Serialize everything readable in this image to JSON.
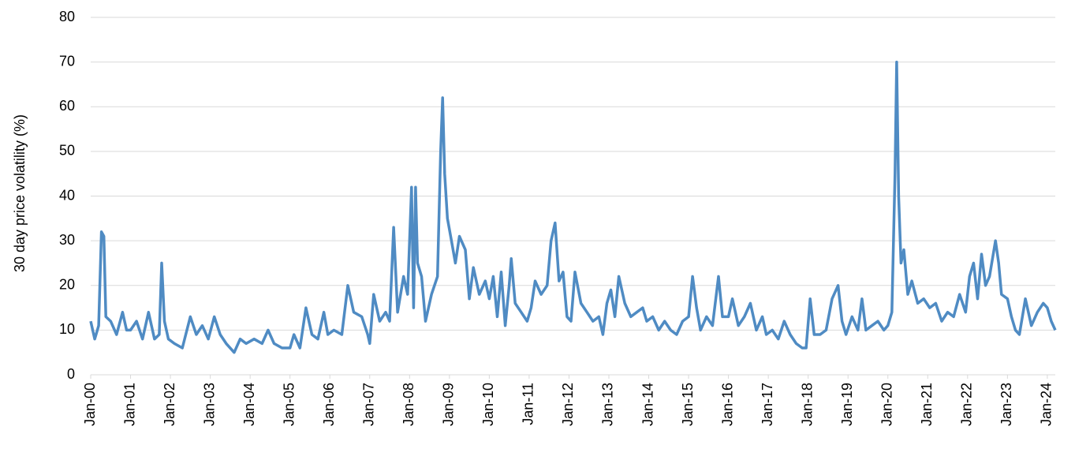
{
  "chart_data": {
    "type": "line",
    "ylabel": "30 day price volatility (%)",
    "xlim": [
      2000,
      2024.2
    ],
    "xticks": [
      {
        "value": 2000,
        "label": "Jan-00"
      },
      {
        "value": 2001,
        "label": "Jan-01"
      },
      {
        "value": 2002,
        "label": "Jan-02"
      },
      {
        "value": 2003,
        "label": "Jan-03"
      },
      {
        "value": 2004,
        "label": "Jan-04"
      },
      {
        "value": 2005,
        "label": "Jan-05"
      },
      {
        "value": 2006,
        "label": "Jan-06"
      },
      {
        "value": 2007,
        "label": "Jan-07"
      },
      {
        "value": 2008,
        "label": "Jan-08"
      },
      {
        "value": 2009,
        "label": "Jan-09"
      },
      {
        "value": 2010,
        "label": "Jan-10"
      },
      {
        "value": 2011,
        "label": "Jan-11"
      },
      {
        "value": 2012,
        "label": "Jan-12"
      },
      {
        "value": 2013,
        "label": "Jan-13"
      },
      {
        "value": 2014,
        "label": "Jan-14"
      },
      {
        "value": 2015,
        "label": "Jan-15"
      },
      {
        "value": 2016,
        "label": "Jan-16"
      },
      {
        "value": 2017,
        "label": "Jan-17"
      },
      {
        "value": 2018,
        "label": "Jan-18"
      },
      {
        "value": 2019,
        "label": "Jan-19"
      },
      {
        "value": 2020,
        "label": "Jan-20"
      },
      {
        "value": 2021,
        "label": "Jan-21"
      },
      {
        "value": 2022,
        "label": "Jan-22"
      },
      {
        "value": 2023,
        "label": "Jan-23"
      },
      {
        "value": 2024,
        "label": "Jan-24"
      }
    ],
    "ylim": [
      0,
      80
    ],
    "yticks": [
      0,
      10,
      20,
      30,
      40,
      50,
      60,
      70,
      80
    ],
    "grid": true,
    "series": [
      {
        "color": "#4f8bc3",
        "x": [
          2000.0,
          2000.1,
          2000.2,
          2000.27,
          2000.33,
          2000.38,
          2000.5,
          2000.65,
          2000.8,
          2000.9,
          2001.0,
          2001.15,
          2001.3,
          2001.45,
          2001.6,
          2001.72,
          2001.78,
          2001.85,
          2001.95,
          2002.1,
          2002.3,
          2002.5,
          2002.65,
          2002.8,
          2002.95,
          2003.1,
          2003.25,
          2003.4,
          2003.6,
          2003.75,
          2003.9,
          2004.1,
          2004.3,
          2004.45,
          2004.6,
          2004.8,
          2005.0,
          2005.1,
          2005.25,
          2005.4,
          2005.55,
          2005.7,
          2005.85,
          2005.95,
          2006.1,
          2006.3,
          2006.45,
          2006.6,
          2006.8,
          2006.95,
          2007.0,
          2007.1,
          2007.25,
          2007.4,
          2007.5,
          2007.6,
          2007.7,
          2007.85,
          2007.95,
          2008.05,
          2008.1,
          2008.15,
          2008.2,
          2008.3,
          2008.4,
          2008.55,
          2008.7,
          2008.78,
          2008.83,
          2008.88,
          2008.95,
          2009.05,
          2009.15,
          2009.25,
          2009.4,
          2009.5,
          2009.6,
          2009.75,
          2009.9,
          2010.0,
          2010.1,
          2010.2,
          2010.3,
          2010.4,
          2010.5,
          2010.55,
          2010.65,
          2010.8,
          2010.95,
          2011.05,
          2011.15,
          2011.3,
          2011.45,
          2011.55,
          2011.65,
          2011.75,
          2011.85,
          2011.95,
          2012.05,
          2012.15,
          2012.3,
          2012.45,
          2012.6,
          2012.75,
          2012.85,
          2012.95,
          2013.05,
          2013.15,
          2013.25,
          2013.4,
          2013.55,
          2013.7,
          2013.85,
          2013.95,
          2014.1,
          2014.25,
          2014.4,
          2014.55,
          2014.7,
          2014.85,
          2015.0,
          2015.1,
          2015.2,
          2015.3,
          2015.45,
          2015.6,
          2015.75,
          2015.85,
          2016.0,
          2016.1,
          2016.25,
          2016.4,
          2016.55,
          2016.7,
          2016.85,
          2016.95,
          2017.1,
          2017.25,
          2017.4,
          2017.55,
          2017.7,
          2017.85,
          2017.95,
          2018.05,
          2018.15,
          2018.3,
          2018.45,
          2018.6,
          2018.75,
          2018.85,
          2018.95,
          2019.1,
          2019.25,
          2019.35,
          2019.45,
          2019.6,
          2019.75,
          2019.9,
          2020.0,
          2020.1,
          2020.18,
          2020.22,
          2020.27,
          2020.33,
          2020.4,
          2020.5,
          2020.6,
          2020.75,
          2020.9,
          2021.05,
          2021.2,
          2021.35,
          2021.5,
          2021.65,
          2021.8,
          2021.95,
          2022.05,
          2022.15,
          2022.25,
          2022.35,
          2022.45,
          2022.55,
          2022.7,
          2022.78,
          2022.85,
          2023.0,
          2023.1,
          2023.2,
          2023.3,
          2023.45,
          2023.6,
          2023.75,
          2023.9,
          2024.0,
          2024.1,
          2024.2
        ],
        "values": [
          12,
          8,
          11,
          32,
          31,
          13,
          12,
          9,
          14,
          10,
          10,
          12,
          8,
          14,
          8,
          9,
          25,
          12,
          8,
          7,
          6,
          13,
          9,
          11,
          8,
          13,
          9,
          7,
          5,
          8,
          7,
          8,
          7,
          10,
          7,
          6,
          6,
          9,
          6,
          15,
          9,
          8,
          14,
          9,
          10,
          9,
          20,
          14,
          13,
          9,
          7,
          18,
          12,
          14,
          12,
          33,
          14,
          22,
          18,
          42,
          15,
          42,
          25,
          22,
          12,
          18,
          22,
          50,
          62,
          45,
          35,
          30,
          25,
          31,
          28,
          17,
          24,
          18,
          21,
          17,
          22,
          13,
          23,
          11,
          20,
          26,
          16,
          14,
          12,
          15,
          21,
          18,
          20,
          30,
          34,
          21,
          23,
          13,
          12,
          23,
          16,
          14,
          12,
          13,
          9,
          16,
          19,
          13,
          22,
          16,
          13,
          14,
          15,
          12,
          13,
          10,
          12,
          10,
          9,
          12,
          13,
          22,
          15,
          10,
          13,
          11,
          22,
          13,
          13,
          17,
          11,
          13,
          16,
          10,
          13,
          9,
          10,
          8,
          12,
          9,
          7,
          6,
          6,
          17,
          9,
          9,
          10,
          17,
          20,
          12,
          9,
          13,
          10,
          17,
          10,
          11,
          12,
          10,
          11,
          14,
          45,
          70,
          40,
          25,
          28,
          18,
          21,
          16,
          17,
          15,
          16,
          12,
          14,
          13,
          18,
          14,
          22,
          25,
          17,
          27,
          20,
          22,
          30,
          25,
          18,
          17,
          13,
          10,
          9,
          17,
          11,
          14,
          16,
          15,
          12,
          10
        ]
      }
    ]
  }
}
